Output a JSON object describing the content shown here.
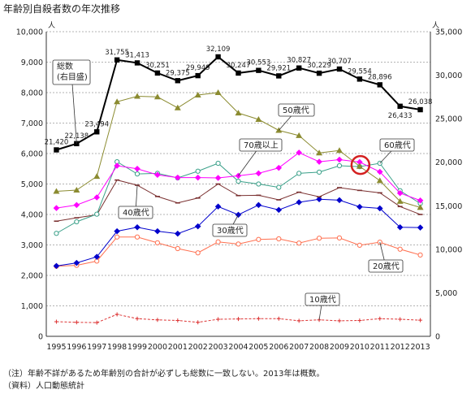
{
  "title": "年齢別自殺者数の年次推移",
  "notes": [
    "（注）年齢不詳があるため年齢別の合計が必ずしも総数に一致しない。2013年は概数。",
    "（資料）人口動態統計"
  ],
  "chart_data": {
    "type": "line",
    "x": [
      "1995",
      "1996",
      "1997",
      "1998",
      "1999",
      "2000",
      "2001",
      "2002",
      "2003",
      "2004",
      "2005",
      "2006",
      "2007",
      "2008",
      "2009",
      "2010",
      "2011",
      "2012",
      "2013"
    ],
    "left_axis": {
      "ylim": [
        0,
        10000
      ],
      "ticks": [
        "0",
        "1,000",
        "2,000",
        "3,000",
        "4,000",
        "5,000",
        "6,000",
        "7,000",
        "8,000",
        "9,000",
        "10,000"
      ],
      "unit": "人"
    },
    "right_axis": {
      "ylim": [
        0,
        35000
      ],
      "ticks": [
        "0",
        "5,000",
        "10,000",
        "15,000",
        "20,000",
        "25,000",
        "30,000",
        "35,000"
      ],
      "unit": "人"
    },
    "grid": true,
    "series": [
      {
        "name": "総数\n(右目盛)",
        "axis": "right",
        "color": "#000000",
        "marker": "square",
        "values": [
          21420,
          22138,
          23494,
          31755,
          31413,
          30251,
          29375,
          29949,
          32109,
          30247,
          30553,
          29921,
          30827,
          30229,
          30707,
          29554,
          28896,
          26433,
          26038
        ],
        "labels": [
          "21,420",
          "22,138",
          "23,494",
          "31,755",
          "31,413",
          "30,251",
          "29,375",
          "29,949",
          "32,109",
          "30,247",
          "30,553",
          "29,921",
          "30,827",
          "30,229",
          "30,707",
          "29,554",
          "28,896",
          "26,433",
          "26,038"
        ]
      },
      {
        "name": "50歳代",
        "axis": "left",
        "color": "#8b8b30",
        "marker": "triangle",
        "values": [
          4760,
          4800,
          5250,
          7700,
          7880,
          7860,
          7500,
          7920,
          8000,
          7330,
          7120,
          6760,
          6590,
          6020,
          6100,
          5580,
          5110,
          4430,
          4230
        ]
      },
      {
        "name": "70歳以上",
        "axis": "left",
        "color": "#ff00ff",
        "marker": "diamond",
        "values": [
          4210,
          4310,
          4560,
          5600,
          5500,
          5300,
          5210,
          5210,
          5200,
          5270,
          5350,
          5530,
          6030,
          5730,
          5800,
          5720,
          5400,
          4700,
          4460
        ]
      },
      {
        "name": "60歳代",
        "axis": "left",
        "color": "#3aa089",
        "marker": "circle",
        "values": [
          3380,
          3760,
          4010,
          5730,
          5330,
          5350,
          5200,
          5420,
          5680,
          5090,
          5000,
          4890,
          5350,
          5390,
          5600,
          5570,
          5680,
          4780,
          4360
        ]
      },
      {
        "name": "40歳代",
        "axis": "left",
        "color": "#7a3030",
        "marker": "dash",
        "values": [
          3780,
          3890,
          3990,
          5130,
          4960,
          4590,
          4380,
          4540,
          5000,
          4620,
          4630,
          4480,
          4730,
          4580,
          4880,
          4790,
          4710,
          4260,
          4000
        ]
      },
      {
        "name": "30歳代",
        "axis": "left",
        "color": "#0000cc",
        "marker": "diamond",
        "values": [
          2310,
          2410,
          2610,
          3450,
          3580,
          3450,
          3370,
          3610,
          4260,
          3990,
          4310,
          4150,
          4400,
          4500,
          4470,
          4250,
          4200,
          3580,
          3570
        ]
      },
      {
        "name": "20歳代",
        "axis": "left",
        "color": "#ff7050",
        "marker": "circle",
        "values": [
          2300,
          2330,
          2470,
          3260,
          3260,
          3070,
          2880,
          2740,
          3100,
          3030,
          3180,
          3200,
          3060,
          3220,
          3230,
          2990,
          3090,
          2860,
          2670
        ]
      },
      {
        "name": "10歳代",
        "axis": "left",
        "color": "#dd3333",
        "marker": "plus",
        "values": [
          480,
          460,
          450,
          720,
          580,
          540,
          520,
          460,
          560,
          570,
          580,
          580,
          510,
          540,
          510,
          520,
          580,
          560,
          530
        ]
      }
    ],
    "callouts": [
      {
        "series": "総数\n(右目盛)",
        "text": "総数\n(右目盛)"
      },
      {
        "series": "50歳代",
        "text": "50歳代"
      },
      {
        "series": "70歳以上",
        "text": "70歳以上"
      },
      {
        "series": "60歳代",
        "text": "60歳代"
      },
      {
        "series": "40歳代",
        "text": "40歳代"
      },
      {
        "series": "30歳代",
        "text": "30歳代"
      },
      {
        "series": "20歳代",
        "text": "20歳代"
      },
      {
        "series": "10歳代",
        "text": "10歳代"
      }
    ],
    "highlight": {
      "series": "60歳代",
      "year": "2010",
      "color": "#d42020"
    }
  }
}
